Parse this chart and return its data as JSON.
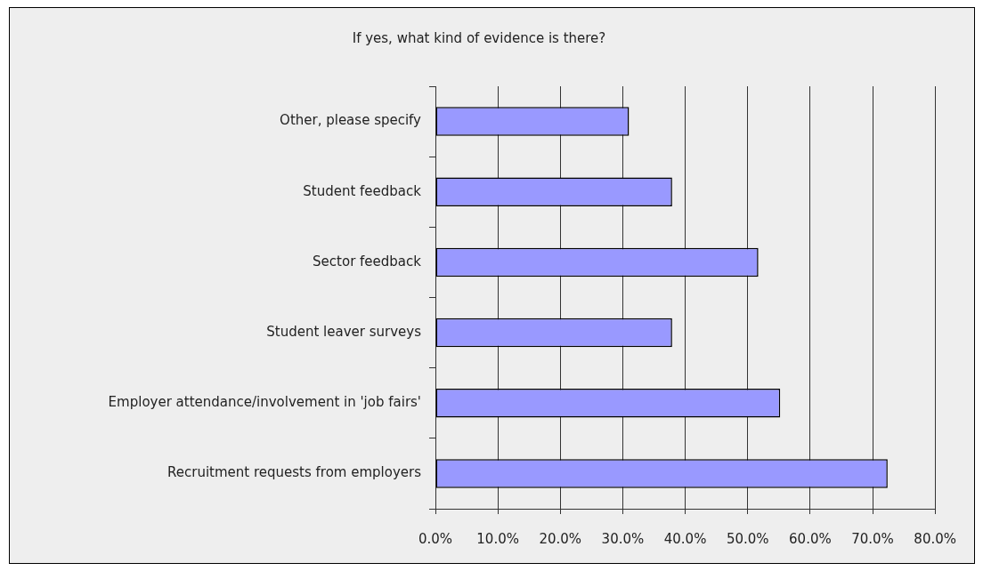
{
  "chart_data": {
    "type": "bar",
    "title": "If yes, what kind of evidence is there?",
    "orientation": "horizontal",
    "categories": [
      "Other, please specify",
      "Student feedback",
      "Sector feedback",
      "Student leaver surveys",
      "Employer attendance/involvement in 'job fairs'",
      "Recruitment requests from employers"
    ],
    "values": [
      31.0,
      37.9,
      51.7,
      37.9,
      55.2,
      72.4
    ],
    "color": "#9999ff",
    "xlim": [
      0,
      80
    ],
    "xticks": [
      {
        "value": 0,
        "label": "0.0%"
      },
      {
        "value": 10,
        "label": "10.0%"
      },
      {
        "value": 20,
        "label": "20.0%"
      },
      {
        "value": 30,
        "label": "30.0%"
      },
      {
        "value": 40,
        "label": "40.0%"
      },
      {
        "value": 50,
        "label": "50.0%"
      },
      {
        "value": 60,
        "label": "60.0%"
      },
      {
        "value": 70,
        "label": "70.0%"
      },
      {
        "value": 80,
        "label": "80.0%"
      }
    ],
    "grid": "x"
  }
}
